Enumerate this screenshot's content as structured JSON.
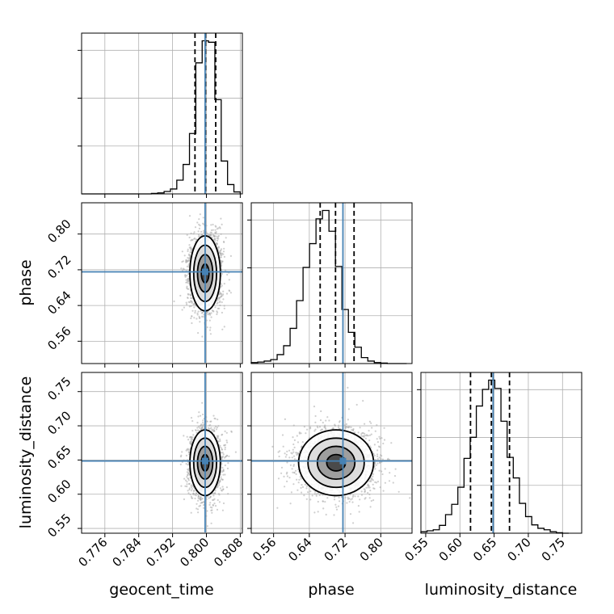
{
  "chart_data": {
    "type": "corner",
    "parameters": [
      "geocent_time",
      "phase",
      "luminosity_distance"
    ],
    "axis_labels": {
      "phase": "phase",
      "luminosity_distance": "luminosity_distance",
      "geocent_time": "geocent_time"
    },
    "ranges": {
      "geocent_time": [
        0.7705,
        0.8085
      ],
      "phase": [
        0.51,
        0.87
      ],
      "luminosity_distance": [
        0.543,
        0.778
      ]
    },
    "ticks": {
      "geocent_time": [
        "0.776",
        "0.784",
        "0.792",
        "0.800",
        "0.808"
      ],
      "phase": [
        "0.56",
        "0.64",
        "0.72",
        "0.80"
      ],
      "luminosity_distance": [
        "0.55",
        "0.60",
        "0.65",
        "0.70",
        "0.75"
      ]
    },
    "truths": {
      "geocent_time": 0.7997,
      "phase": 0.7153,
      "luminosity_distance": 0.6485
    },
    "quantiles": {
      "geocent_time": [
        0.7973,
        0.7998,
        0.8022
      ],
      "phase": [
        0.6643,
        0.6987,
        0.7402
      ],
      "luminosity_distance": [
        0.6155,
        0.646,
        0.6725
      ]
    },
    "histograms": {
      "geocent_time": {
        "bins": [
          0.7705,
          0.772,
          0.7735,
          0.775,
          0.7765,
          0.778,
          0.7795,
          0.781,
          0.7825,
          0.784,
          0.7855,
          0.787,
          0.7885,
          0.79,
          0.7915,
          0.793,
          0.7945,
          0.796,
          0.7975,
          0.799,
          0.8005,
          0.802,
          0.8035,
          0.805,
          0.8065,
          0.808
        ],
        "counts": [
          0,
          0,
          0,
          0,
          0,
          0,
          0,
          0,
          0,
          0,
          0,
          1,
          2,
          5,
          10,
          28,
          60,
          123,
          267,
          312,
          309,
          192,
          67,
          19,
          4
        ]
      },
      "phase": {
        "bins": [
          0.51,
          0.5245,
          0.539,
          0.5535,
          0.568,
          0.5825,
          0.597,
          0.6115,
          0.626,
          0.6405,
          0.655,
          0.6695,
          0.684,
          0.6985,
          0.713,
          0.7275,
          0.742,
          0.7565,
          0.771,
          0.7855,
          0.8,
          0.8145,
          0.829,
          0.8435,
          0.858
        ],
        "counts": [
          2,
          3,
          5,
          8,
          18,
          36,
          71,
          127,
          194,
          242,
          292,
          309,
          267,
          196,
          109,
          63,
          33,
          12,
          5,
          2,
          1,
          0,
          0,
          0
        ]
      },
      "luminosity_distance": {
        "bins": [
          0.543,
          0.552,
          0.561,
          0.57,
          0.579,
          0.588,
          0.597,
          0.606,
          0.615,
          0.624,
          0.633,
          0.642,
          0.651,
          0.66,
          0.669,
          0.678,
          0.687,
          0.696,
          0.705,
          0.714,
          0.723,
          0.732,
          0.741,
          0.75,
          0.759
        ],
        "counts": [
          3,
          5,
          7,
          16,
          38,
          59,
          94,
          153,
          196,
          260,
          294,
          313,
          296,
          229,
          155,
          113,
          61,
          34,
          17,
          10,
          7,
          3,
          1,
          0
        ]
      }
    },
    "posterior_2d": {
      "phase_vs_geocent_time": {
        "center": [
          0.7997,
          0.712
        ],
        "sigma": [
          0.0018,
          0.042
        ]
      },
      "luminosity_distance_vs_geocent_time": {
        "center": [
          0.7997,
          0.646
        ],
        "sigma": [
          0.0018,
          0.024
        ]
      },
      "luminosity_distance_vs_phase": {
        "center": [
          0.7,
          0.646
        ],
        "sigma": [
          0.042,
          0.024
        ]
      }
    },
    "contour_levels": 4,
    "grid": true,
    "colors": {
      "truth": "#4682b4",
      "hist_line": "#000000",
      "points": "#a8a8a8",
      "grid": "#b0b0b0"
    }
  }
}
